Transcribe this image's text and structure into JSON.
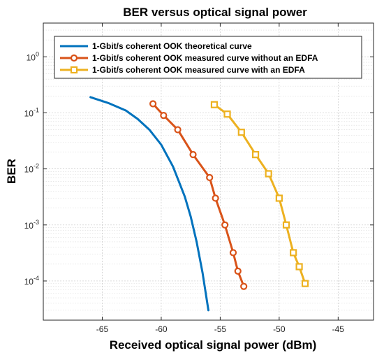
{
  "chart_data": {
    "type": "line",
    "title": "BER versus optical signal power",
    "xlabel": "Received optical signal power (dBm)",
    "ylabel": "BER",
    "xlim": [
      -70,
      -42
    ],
    "ylim": [
      2e-05,
      4
    ],
    "yscale": "log",
    "grid": "on",
    "legend_position": "top-right",
    "x_ticks": [
      -65,
      -60,
      -55,
      -50,
      -45
    ],
    "x_tick_labels": [
      "-65",
      "-60",
      "-55",
      "-50",
      "-45"
    ],
    "y_ticks": [
      1,
      0.1,
      0.01,
      0.001,
      0.0001
    ],
    "y_tick_labels": [
      {
        "base": "10",
        "exp": "0"
      },
      {
        "base": "10",
        "exp": "-1"
      },
      {
        "base": "10",
        "exp": "-2"
      },
      {
        "base": "10",
        "exp": "-3"
      },
      {
        "base": "10",
        "exp": "-4"
      }
    ],
    "series": [
      {
        "name": "1-Gbit/s coherent OOK theoretical curve",
        "color": "#0072BD",
        "marker": "none",
        "x": [
          -66,
          -64.5,
          -63,
          -62,
          -61,
          -60,
          -59,
          -58,
          -57.5,
          -57,
          -56.5,
          -56
        ],
        "y": [
          0.19,
          0.15,
          0.11,
          0.078,
          0.05,
          0.027,
          0.011,
          0.0032,
          0.0014,
          0.0005,
          0.00014,
          3e-05
        ]
      },
      {
        "name": "1-Gbit/s coherent OOK measured curve without an EDFA",
        "color": "#D95319",
        "marker": "circle",
        "x": [
          -60.7,
          -59.8,
          -58.6,
          -57.3,
          -55.9,
          -55.4,
          -54.6,
          -53.9,
          -53.5,
          -53.0
        ],
        "y": [
          0.145,
          0.09,
          0.05,
          0.018,
          0.007,
          0.003,
          0.001,
          0.00032,
          0.00015,
          8e-05
        ]
      },
      {
        "name": "1-Gbit/s coherent OOK measured curve with an EDFA",
        "color": "#EDB120",
        "marker": "square",
        "x": [
          -55.5,
          -54.4,
          -53.2,
          -52.0,
          -50.9,
          -50.0,
          -49.4,
          -48.8,
          -48.3,
          -47.8
        ],
        "y": [
          0.14,
          0.095,
          0.045,
          0.018,
          0.0082,
          0.003,
          0.001,
          0.00032,
          0.00018,
          9e-05
        ]
      }
    ]
  }
}
